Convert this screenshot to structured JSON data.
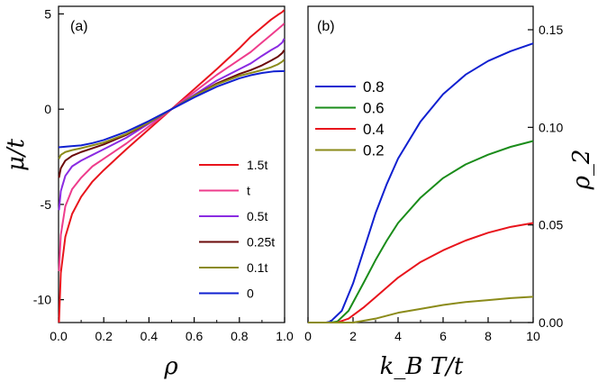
{
  "chart_data": [
    {
      "type": "line",
      "panel_label": "(a)",
      "xlabel": "ρ",
      "ylabel": "μ/t",
      "xlim": [
        0,
        1
      ],
      "ylim": [
        -11.2,
        5.4
      ],
      "xticks": [
        "0.0",
        "0.2",
        "0.4",
        "0.6",
        "0.8",
        "1.0"
      ],
      "yticks": [
        "5",
        "0",
        "-5",
        "-10"
      ],
      "legend_position": "lower-right",
      "series": [
        {
          "name": "1.5t",
          "color": "#e8141c",
          "x": [
            0.002,
            0.01,
            0.03,
            0.06,
            0.1,
            0.15,
            0.2,
            0.3,
            0.4,
            0.5,
            0.6,
            0.7,
            0.8,
            0.85,
            0.9,
            0.94,
            0.97,
            0.99,
            0.998
          ],
          "y": [
            -11.2,
            -8.6,
            -6.7,
            -5.5,
            -4.6,
            -3.8,
            -3.2,
            -2.1,
            -1.05,
            0.0,
            1.05,
            2.1,
            3.2,
            3.8,
            4.3,
            4.7,
            4.95,
            5.1,
            5.2
          ]
        },
        {
          "name": "t",
          "color": "#ee3c8c",
          "x": [
            0.002,
            0.01,
            0.03,
            0.06,
            0.1,
            0.15,
            0.2,
            0.3,
            0.4,
            0.5,
            0.6,
            0.7,
            0.8,
            0.85,
            0.9,
            0.94,
            0.97,
            0.99,
            0.998
          ],
          "y": [
            -8.5,
            -6.6,
            -5.1,
            -4.2,
            -3.6,
            -3.0,
            -2.6,
            -1.8,
            -0.9,
            0.0,
            0.9,
            1.8,
            2.6,
            3.0,
            3.5,
            3.9,
            4.2,
            4.4,
            4.5
          ]
        },
        {
          "name": "0.5t",
          "color": "#8a2be2",
          "x": [
            0.002,
            0.01,
            0.03,
            0.06,
            0.1,
            0.15,
            0.2,
            0.3,
            0.4,
            0.5,
            0.6,
            0.7,
            0.8,
            0.85,
            0.9,
            0.94,
            0.97,
            0.99,
            0.998
          ],
          "y": [
            -5.3,
            -4.3,
            -3.5,
            -3.0,
            -2.7,
            -2.4,
            -2.1,
            -1.5,
            -0.75,
            0.0,
            0.75,
            1.5,
            2.1,
            2.4,
            2.8,
            3.1,
            3.3,
            3.5,
            3.7
          ]
        },
        {
          "name": "0.25t",
          "color": "#6b0a0a",
          "x": [
            0.002,
            0.01,
            0.03,
            0.06,
            0.1,
            0.15,
            0.2,
            0.3,
            0.4,
            0.5,
            0.6,
            0.7,
            0.8,
            0.85,
            0.9,
            0.94,
            0.97,
            0.99,
            0.998
          ],
          "y": [
            -3.6,
            -3.1,
            -2.7,
            -2.45,
            -2.25,
            -2.05,
            -1.85,
            -1.35,
            -0.7,
            0.0,
            0.7,
            1.35,
            1.85,
            2.05,
            2.3,
            2.55,
            2.75,
            2.95,
            3.1
          ]
        },
        {
          "name": "0.1t",
          "color": "#8b8b1a",
          "x": [
            0.002,
            0.01,
            0.03,
            0.06,
            0.1,
            0.15,
            0.2,
            0.3,
            0.4,
            0.5,
            0.6,
            0.7,
            0.8,
            0.85,
            0.9,
            0.94,
            0.97,
            0.99,
            0.998
          ],
          "y": [
            -2.6,
            -2.4,
            -2.25,
            -2.15,
            -2.05,
            -1.9,
            -1.75,
            -1.3,
            -0.7,
            0.0,
            0.7,
            1.3,
            1.75,
            1.9,
            2.05,
            2.2,
            2.35,
            2.5,
            2.6
          ]
        },
        {
          "name": "0",
          "color": "#1020d0",
          "x": [
            0.0,
            0.05,
            0.1,
            0.15,
            0.2,
            0.3,
            0.4,
            0.5,
            0.6,
            0.7,
            0.8,
            0.85,
            0.9,
            0.95,
            1.0
          ],
          "y": [
            -2.0,
            -1.95,
            -1.9,
            -1.78,
            -1.62,
            -1.18,
            -0.62,
            0.0,
            0.62,
            1.18,
            1.62,
            1.78,
            1.9,
            1.98,
            2.0
          ]
        }
      ]
    },
    {
      "type": "line",
      "panel_label": "(b)",
      "xlabel": "k_B T/t",
      "ylabel": "ρ_2",
      "xlim": [
        0,
        10
      ],
      "ylim": [
        0,
        0.162
      ],
      "xticks": [
        "0",
        "2",
        "4",
        "6",
        "8",
        "10"
      ],
      "yticks": [
        "0.00",
        "0.05",
        "0.10",
        "0.15"
      ],
      "legend_position": "top-left",
      "series": [
        {
          "name": "0.8",
          "color": "#1020d0",
          "x": [
            0,
            0.8,
            1.0,
            1.5,
            2.0,
            2.5,
            3.0,
            3.5,
            4.0,
            5.0,
            6.0,
            7.0,
            8.0,
            9.0,
            10.0
          ],
          "y": [
            0,
            0,
            0.0005,
            0.006,
            0.02,
            0.038,
            0.056,
            0.071,
            0.084,
            0.103,
            0.117,
            0.127,
            0.134,
            0.139,
            0.143
          ]
        },
        {
          "name": "0.6",
          "color": "#1a8c1a",
          "x": [
            0,
            1.0,
            1.3,
            1.8,
            2.5,
            3.0,
            3.5,
            4.0,
            5.0,
            6.0,
            7.0,
            8.0,
            9.0,
            10.0
          ],
          "y": [
            0,
            0,
            0.0005,
            0.006,
            0.021,
            0.032,
            0.042,
            0.051,
            0.064,
            0.074,
            0.081,
            0.086,
            0.09,
            0.093
          ]
        },
        {
          "name": "0.4",
          "color": "#e8141c",
          "x": [
            0,
            1.3,
            1.8,
            2.5,
            3.0,
            4.0,
            5.0,
            6.0,
            7.0,
            8.0,
            9.0,
            10.0
          ],
          "y": [
            0,
            0,
            0.002,
            0.008,
            0.013,
            0.023,
            0.031,
            0.037,
            0.042,
            0.046,
            0.049,
            0.051
          ]
        },
        {
          "name": "0.2",
          "color": "#8b8b1a",
          "x": [
            0,
            2.0,
            2.5,
            3.0,
            4.0,
            5.0,
            6.0,
            7.0,
            8.0,
            9.0,
            10.0
          ],
          "y": [
            0,
            0,
            0.001,
            0.002,
            0.005,
            0.007,
            0.009,
            0.0105,
            0.0115,
            0.0125,
            0.0132
          ]
        }
      ]
    }
  ]
}
